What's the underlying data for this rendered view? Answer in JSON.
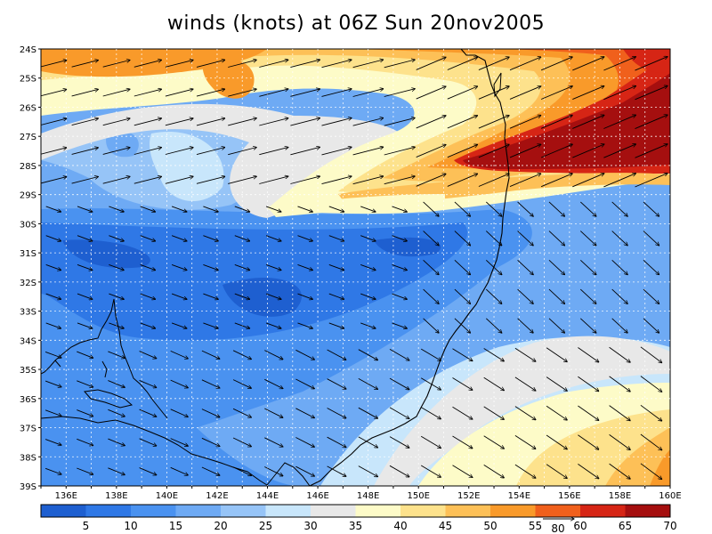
{
  "title": "winds (knots) at 06Z Sun 20nov2005",
  "lat_labels": [
    "24S",
    "25S",
    "26S",
    "27S",
    "28S",
    "29S",
    "30S",
    "31S",
    "32S",
    "33S",
    "34S",
    "35S",
    "36S",
    "37S",
    "38S",
    "39S"
  ],
  "lon_labels": [
    "136E",
    "138E",
    "140E",
    "142E",
    "144E",
    "146E",
    "148E",
    "150E",
    "152E",
    "154E",
    "156E",
    "158E",
    "160E"
  ],
  "colorbar": {
    "labels": [
      "5",
      "10",
      "15",
      "20",
      "25",
      "30",
      "35",
      "40",
      "45",
      "50",
      "55",
      "60",
      "65",
      "70"
    ],
    "colors": [
      "#1e5fd0",
      "#2f78e6",
      "#4a92f0",
      "#6eaaf4",
      "#96c4f7",
      "#c8e6fb",
      "#e8e8e8",
      "#fdfbc8",
      "#fde28c",
      "#fdc057",
      "#f99a2a",
      "#f0601c",
      "#d62515",
      "#a50f0f"
    ],
    "reference_vector_label": "80"
  },
  "map": {
    "lon_range": [
      135,
      160
    ],
    "lat_range": [
      -39,
      -24
    ],
    "contour_interval_knots": 5,
    "features": [
      "Australian east coast",
      "Tasman Sea"
    ],
    "vector_field": "wind barbs (arrows)"
  }
}
